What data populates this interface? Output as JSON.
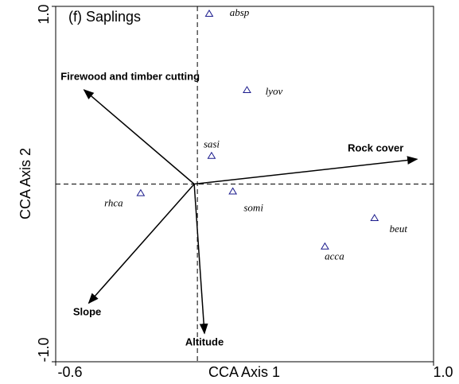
{
  "chart_data": {
    "type": "scatter",
    "title": "(f) Saplings",
    "xlabel": "CCA Axis 1",
    "ylabel": "CCA Axis 2",
    "xlim": [
      -0.6,
      1.0
    ],
    "ylim": [
      -1.0,
      1.0
    ],
    "xticks": [
      {
        "value": -0.6,
        "label": "-0.6"
      },
      {
        "value": 1.0,
        "label": "1.0"
      }
    ],
    "yticks": [
      {
        "value": -1.0,
        "label": "-1.0"
      },
      {
        "value": 1.0,
        "label": "1.0"
      }
    ],
    "point_color": "#1a1a8c",
    "arrow_color": "#000000",
    "points": [
      {
        "label": "absp",
        "x": 0.05,
        "y": 0.96
      },
      {
        "label": "lyov",
        "x": 0.21,
        "y": 0.53
      },
      {
        "label": "sasi",
        "x": 0.06,
        "y": 0.16
      },
      {
        "label": "somi",
        "x": 0.15,
        "y": -0.04
      },
      {
        "label": "rhca",
        "x": -0.24,
        "y": -0.05
      },
      {
        "label": "beut",
        "x": 0.75,
        "y": -0.19
      },
      {
        "label": "acca",
        "x": 0.54,
        "y": -0.35
      }
    ],
    "arrows": [
      {
        "label": "Firewood and timber cutting",
        "x": -0.48,
        "y": 0.53
      },
      {
        "label": "Rock cover",
        "x": 0.93,
        "y": 0.14
      },
      {
        "label": "Slope",
        "x": -0.46,
        "y": -0.67
      },
      {
        "label": "Altitude",
        "x": 0.03,
        "y": -0.84
      }
    ]
  }
}
